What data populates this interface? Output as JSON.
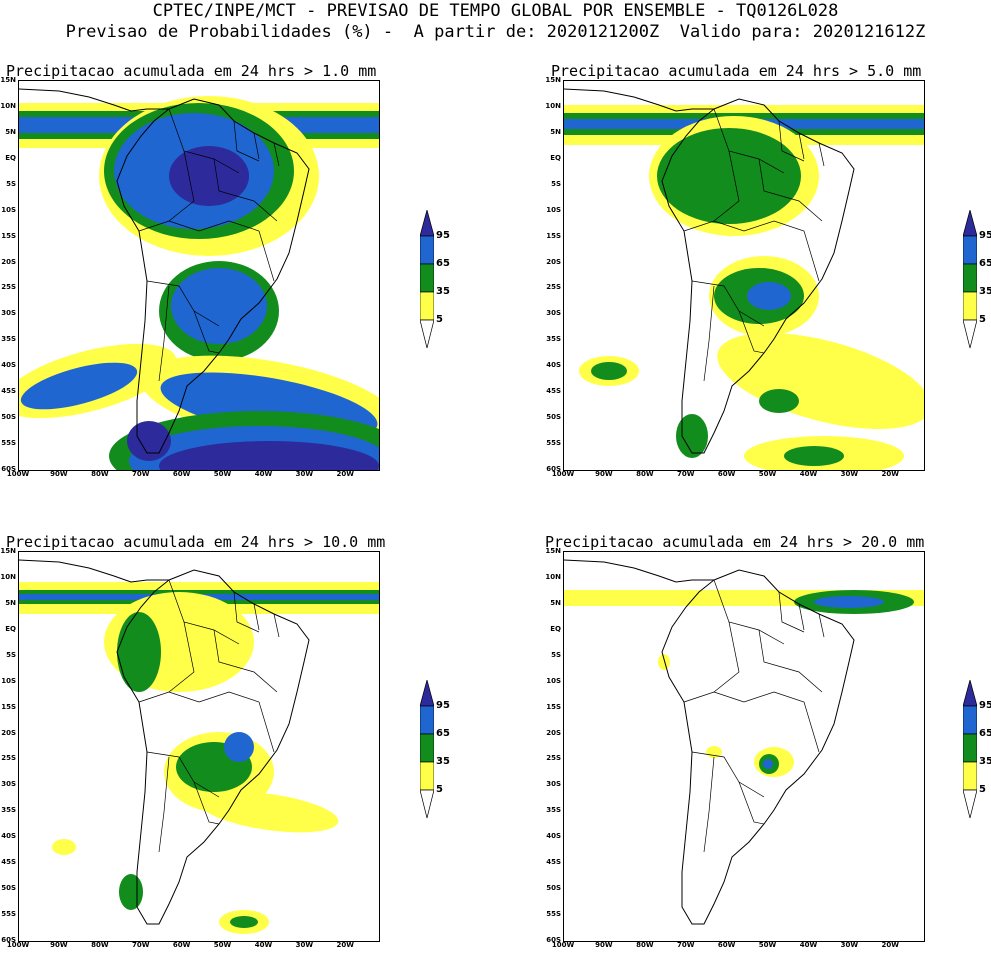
{
  "header": {
    "line1": "CPTEC/INPE/MCT - PREVISAO DE TEMPO GLOBAL POR ENSEMBLE - TQ0126L028",
    "line2": "Previsao de Probabilidades (%) -  A partir de: 2020121200Z  Valido para: 2020121612Z"
  },
  "axes": {
    "lat_labels": [
      "15N",
      "10N",
      "5N",
      "EQ",
      "5S",
      "10S",
      "15S",
      "20S",
      "25S",
      "30S",
      "35S",
      "40S",
      "45S",
      "50S",
      "55S",
      "60S"
    ],
    "lon_labels": [
      "100W",
      "90W",
      "80W",
      "70W",
      "60W",
      "50W",
      "40W",
      "30W",
      "20W"
    ]
  },
  "colorbar": {
    "levels": [
      "95",
      "65",
      "35",
      "5"
    ],
    "colors": {
      "c95": "#2d2a9c",
      "c65": "#1f66d1",
      "c35": "#138c1e",
      "c5": "#ffff4a"
    }
  },
  "panels": [
    {
      "title": "Precipitacao acumulada em 24 hrs > 1.0 mm"
    },
    {
      "title": "Precipitacao acumulada em 24 hrs > 5.0 mm"
    },
    {
      "title": "Precipitacao acumulada em 24 hrs > 10.0 mm"
    },
    {
      "title": "Precipitacao acumulada em 24 hrs > 20.0 mm"
    }
  ]
}
